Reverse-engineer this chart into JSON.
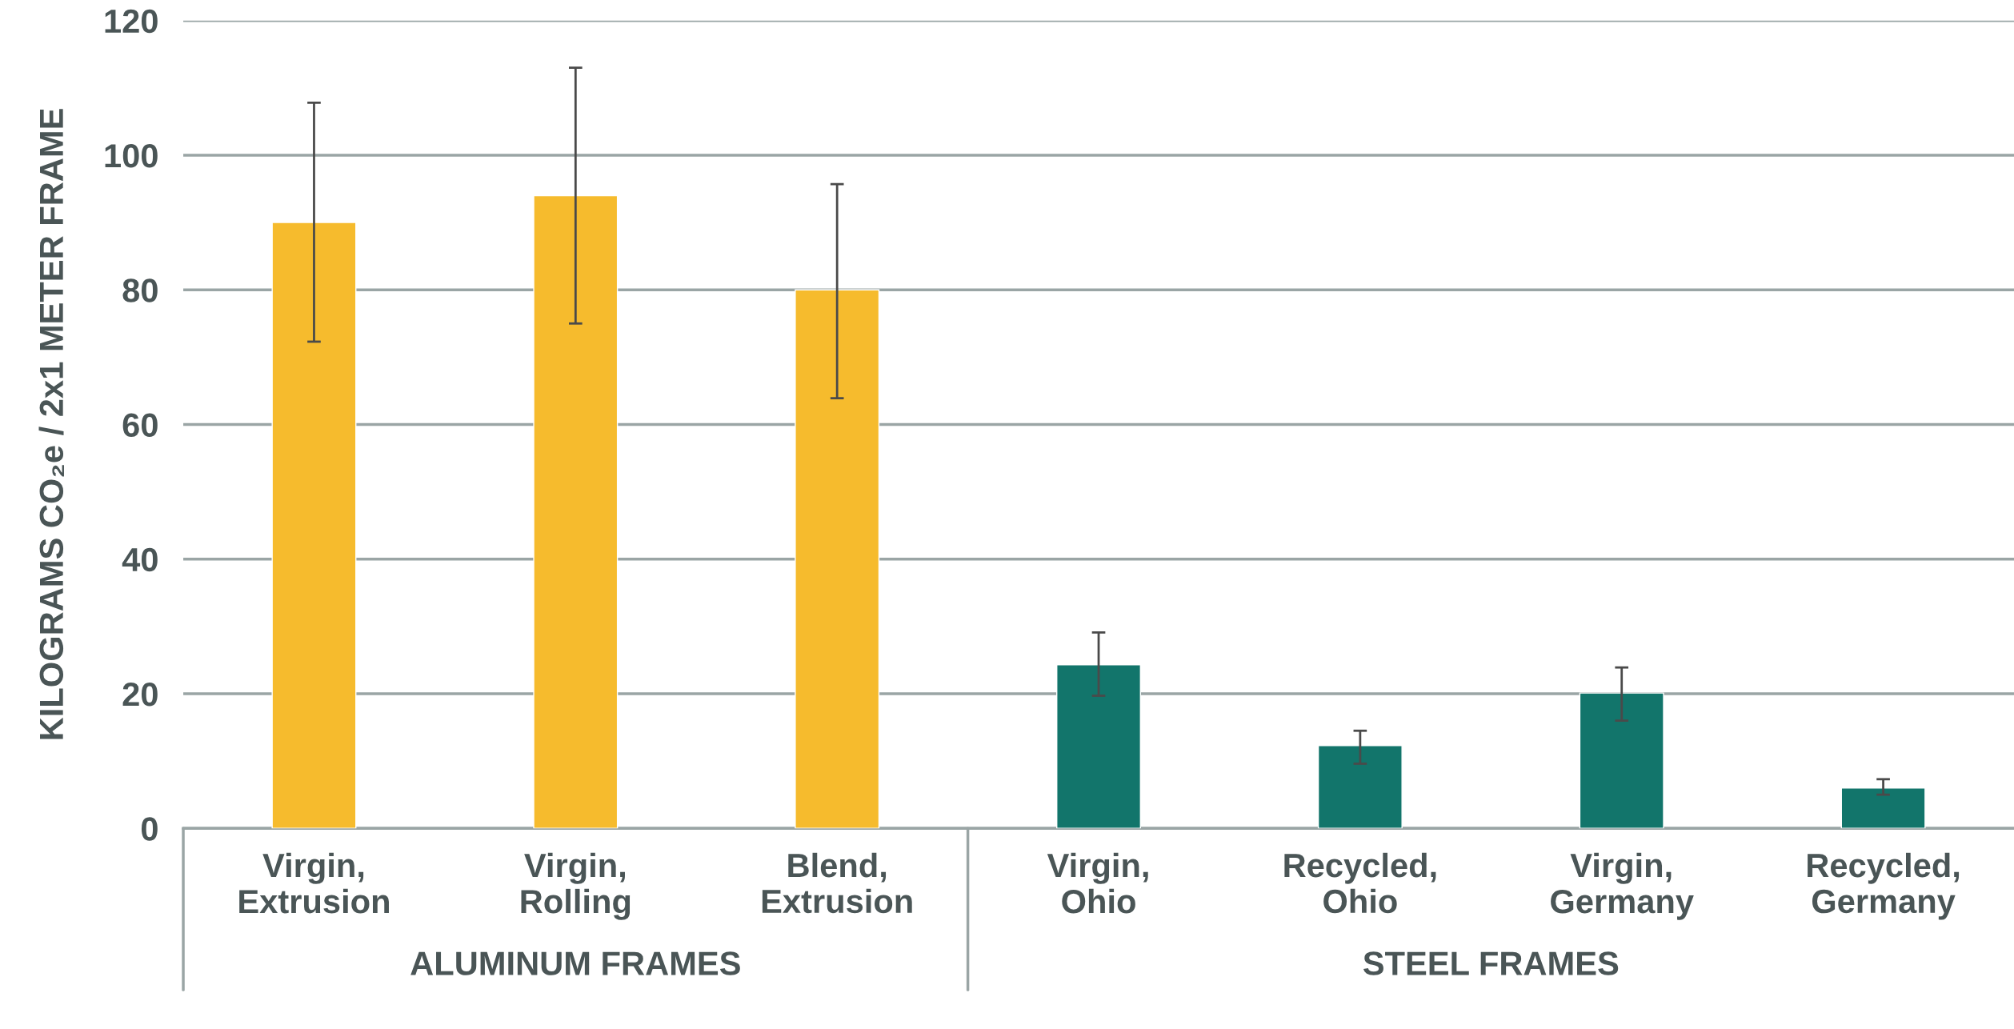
{
  "chart_data": {
    "type": "bar",
    "ylabel": "KILOGRAMS CO₂e / 2x1 METER FRAME",
    "categories": [
      "Virgin,\nExtrusion",
      "Virgin,\nRolling",
      "Blend,\nExtrusion",
      "Virgin,\nOhio",
      "Recycled,\nOhio",
      "Virgin,\nGermany",
      "Recycled,\nGermany"
    ],
    "values": [
      90,
      94,
      80,
      24.3,
      12.3,
      20.1,
      6
    ],
    "colors": [
      "#f6bb2d",
      "#f6bb2d",
      "#f6bb2d",
      "#12756b",
      "#12756b",
      "#12756b",
      "#12756b"
    ],
    "errors": [
      [
        72.3,
        107.8
      ],
      [
        75,
        113
      ],
      [
        63.9,
        95.7
      ],
      [
        19.7,
        29.1
      ],
      [
        9.6,
        14.5
      ],
      [
        16,
        23.9
      ],
      [
        5,
        7.3
      ]
    ],
    "ylim": [
      0,
      120
    ],
    "yticks": [
      0,
      20,
      40,
      60,
      80,
      100,
      120
    ],
    "grid": "y",
    "annotations": [
      "ALUMINUM FRAMES",
      "STEEL FRAMES"
    ]
  }
}
